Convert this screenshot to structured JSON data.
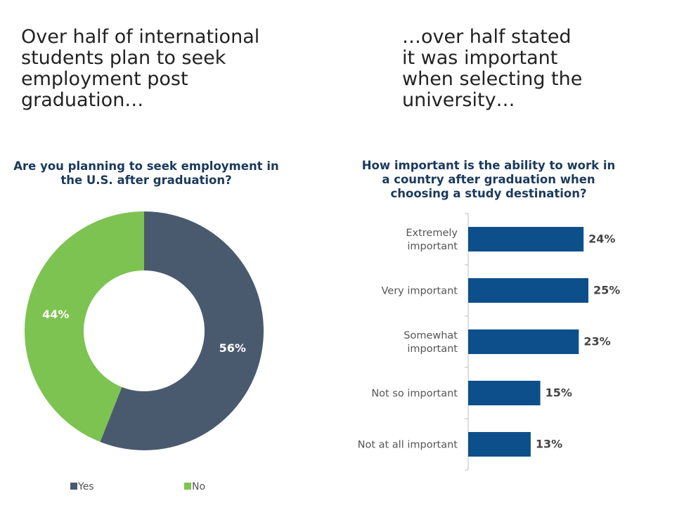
{
  "headlines": {
    "left": "Over half of international students plan to seek employment post graduation…",
    "right": "…over half stated it was important when selecting the university…"
  },
  "chart_data": [
    {
      "type": "pie",
      "variant": "donut",
      "title": "Are you planning to seek employment in the U.S. after graduation?",
      "slices": [
        {
          "name": "Yes",
          "value": 56,
          "label": "56%",
          "color": "#4a5a6e"
        },
        {
          "name": "No",
          "value": 44,
          "label": "44%",
          "color": "#7dc352"
        }
      ],
      "legend": {
        "position": "bottom",
        "entries": [
          "Yes",
          "No"
        ]
      }
    },
    {
      "type": "bar",
      "orientation": "horizontal",
      "title": "How important is the ability to work in a country after graduation when choosing a study destination?",
      "categories": [
        [
          "Extremely",
          "important"
        ],
        [
          "Very important"
        ],
        [
          "Somewhat",
          "important"
        ],
        [
          "Not so important"
        ],
        [
          "Not at all important"
        ]
      ],
      "values": [
        24,
        25,
        23,
        15,
        13
      ],
      "labels": [
        "24%",
        "25%",
        "23%",
        "15%",
        "13%"
      ],
      "unit": "%",
      "xlim": [
        0,
        25
      ],
      "color": "#0d4f8b",
      "grid": false
    }
  ]
}
